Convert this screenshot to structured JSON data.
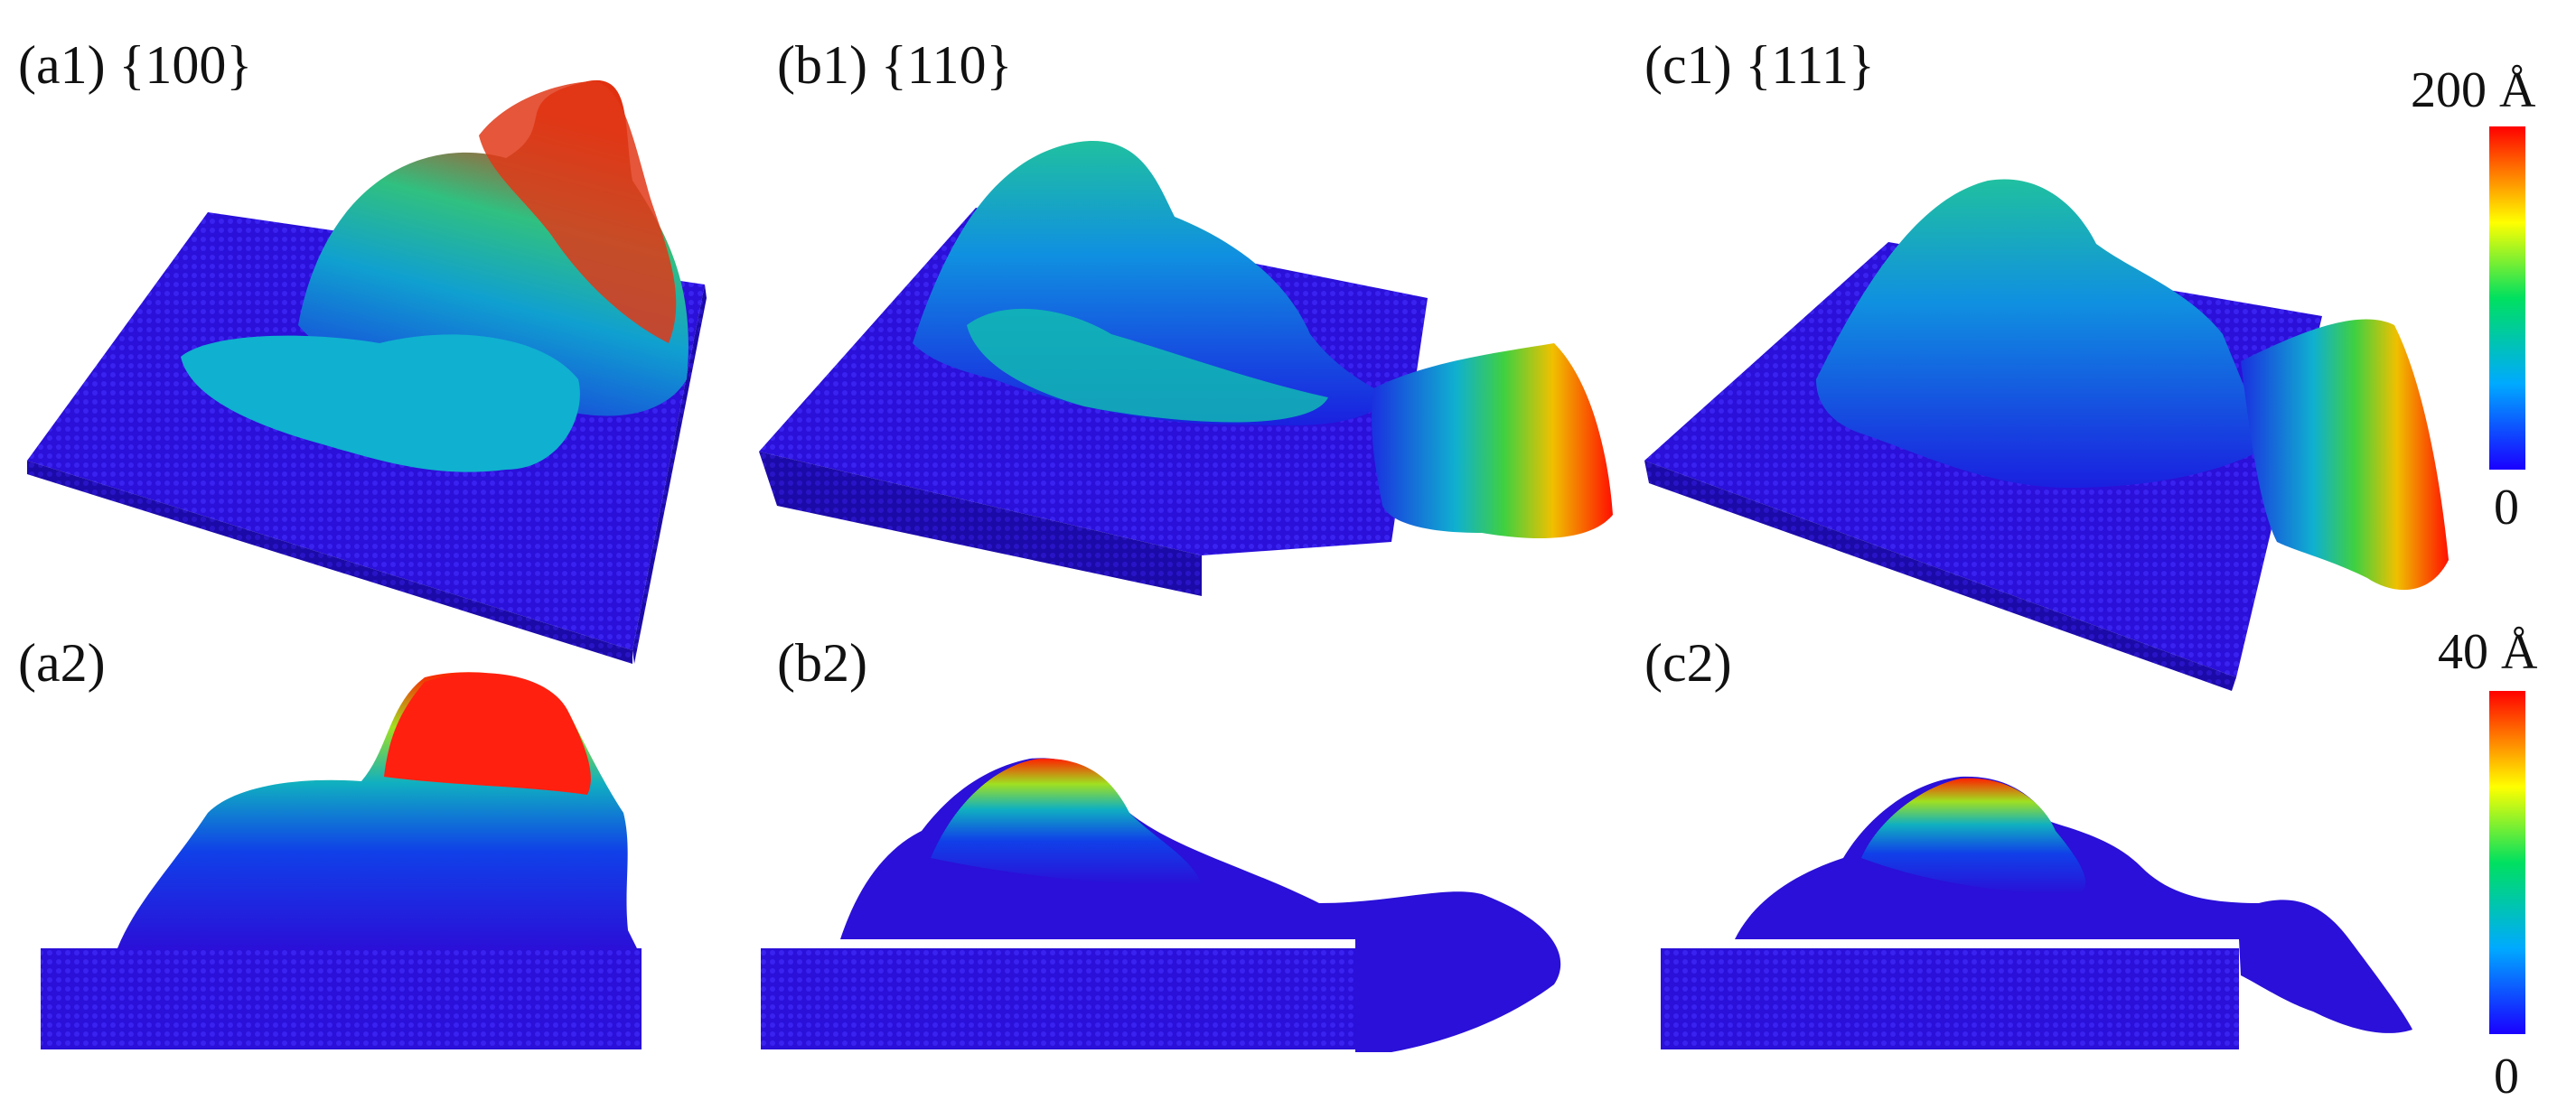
{
  "panels": {
    "a1": "(a1) {100}",
    "b1": "(b1) {110}",
    "c1": "(c1) {111}",
    "a2": "(a2)",
    "b2": "(b2)",
    "c2": "(c2)"
  },
  "colorbars": {
    "top": {
      "max_label": "200 Å",
      "min_label": "0"
    },
    "bottom": {
      "max_label": "40 Å",
      "min_label": "0"
    }
  },
  "colors": {
    "substrate": "#2a10d8",
    "substrate_dark": "#1c0aa8",
    "gradient": [
      "#1a00ff",
      "#00aaff",
      "#00e060",
      "#ffff00",
      "#ff8000",
      "#ff0000"
    ]
  }
}
